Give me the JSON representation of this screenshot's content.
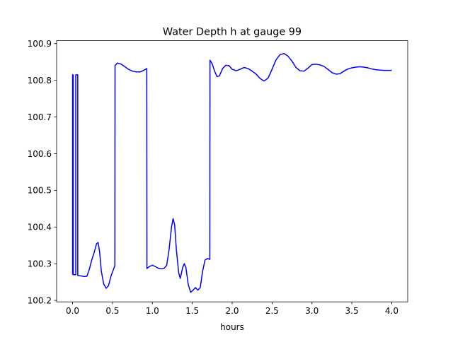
{
  "chart_data": {
    "type": "line",
    "title": "Water Depth h at gauge 99",
    "xlabel": "hours",
    "ylabel": "",
    "xlim": [
      -0.2,
      4.2
    ],
    "ylim": [
      100.196,
      100.908
    ],
    "xticks": [
      0.0,
      0.5,
      1.0,
      1.5,
      2.0,
      2.5,
      3.0,
      3.5,
      4.0
    ],
    "xtick_labels": [
      "0.0",
      "0.5",
      "1.0",
      "1.5",
      "2.0",
      "2.5",
      "3.0",
      "3.5",
      "4.0"
    ],
    "yticks": [
      100.2,
      100.3,
      100.4,
      100.5,
      100.6,
      100.7,
      100.8,
      100.9
    ],
    "ytick_labels": [
      "100.2",
      "100.3",
      "100.4",
      "100.5",
      "100.6",
      "100.7",
      "100.8",
      "100.9"
    ],
    "grid": false,
    "series": [
      {
        "color": "#0000ff",
        "points": [
          [
            0.0,
            100.27
          ],
          [
            0.0,
            100.815
          ],
          [
            0.008,
            100.815
          ],
          [
            0.008,
            100.27
          ],
          [
            0.04,
            100.27
          ],
          [
            0.04,
            100.815
          ],
          [
            0.065,
            100.815
          ],
          [
            0.065,
            100.268
          ],
          [
            0.1,
            100.267
          ],
          [
            0.15,
            100.265
          ],
          [
            0.18,
            100.266
          ],
          [
            0.21,
            100.285
          ],
          [
            0.24,
            100.31
          ],
          [
            0.27,
            100.33
          ],
          [
            0.3,
            100.354
          ],
          [
            0.32,
            100.358
          ],
          [
            0.34,
            100.33
          ],
          [
            0.36,
            100.28
          ],
          [
            0.39,
            100.245
          ],
          [
            0.42,
            100.233
          ],
          [
            0.45,
            100.24
          ],
          [
            0.48,
            100.265
          ],
          [
            0.53,
            100.295
          ],
          [
            0.532,
            100.84
          ],
          [
            0.56,
            100.847
          ],
          [
            0.6,
            100.845
          ],
          [
            0.65,
            100.838
          ],
          [
            0.7,
            100.83
          ],
          [
            0.75,
            100.825
          ],
          [
            0.8,
            100.823
          ],
          [
            0.85,
            100.823
          ],
          [
            0.88,
            100.826
          ],
          [
            0.93,
            100.832
          ],
          [
            0.932,
            100.287
          ],
          [
            0.96,
            100.292
          ],
          [
            1.0,
            100.296
          ],
          [
            1.04,
            100.292
          ],
          [
            1.08,
            100.287
          ],
          [
            1.12,
            100.286
          ],
          [
            1.15,
            100.288
          ],
          [
            1.18,
            100.296
          ],
          [
            1.21,
            100.34
          ],
          [
            1.24,
            100.4
          ],
          [
            1.26,
            100.423
          ],
          [
            1.28,
            100.405
          ],
          [
            1.3,
            100.34
          ],
          [
            1.33,
            100.275
          ],
          [
            1.35,
            100.26
          ],
          [
            1.38,
            100.29
          ],
          [
            1.4,
            100.3
          ],
          [
            1.42,
            100.29
          ],
          [
            1.45,
            100.243
          ],
          [
            1.48,
            100.222
          ],
          [
            1.51,
            100.228
          ],
          [
            1.54,
            100.235
          ],
          [
            1.57,
            100.228
          ],
          [
            1.6,
            100.235
          ],
          [
            1.63,
            100.28
          ],
          [
            1.66,
            100.31
          ],
          [
            1.69,
            100.314
          ],
          [
            1.72,
            100.312
          ],
          [
            1.722,
            100.855
          ],
          [
            1.75,
            100.845
          ],
          [
            1.78,
            100.825
          ],
          [
            1.81,
            100.81
          ],
          [
            1.84,
            100.812
          ],
          [
            1.88,
            100.832
          ],
          [
            1.92,
            100.841
          ],
          [
            1.96,
            100.84
          ],
          [
            2.0,
            100.83
          ],
          [
            2.05,
            100.826
          ],
          [
            2.1,
            100.83
          ],
          [
            2.15,
            100.835
          ],
          [
            2.2,
            100.832
          ],
          [
            2.25,
            100.825
          ],
          [
            2.3,
            100.817
          ],
          [
            2.35,
            100.805
          ],
          [
            2.4,
            100.798
          ],
          [
            2.45,
            100.806
          ],
          [
            2.5,
            100.83
          ],
          [
            2.55,
            100.856
          ],
          [
            2.6,
            100.87
          ],
          [
            2.65,
            100.873
          ],
          [
            2.7,
            100.866
          ],
          [
            2.75,
            100.852
          ],
          [
            2.8,
            100.835
          ],
          [
            2.85,
            100.826
          ],
          [
            2.9,
            100.825
          ],
          [
            2.95,
            100.833
          ],
          [
            3.0,
            100.843
          ],
          [
            3.05,
            100.844
          ],
          [
            3.1,
            100.842
          ],
          [
            3.15,
            100.838
          ],
          [
            3.2,
            100.83
          ],
          [
            3.25,
            100.821
          ],
          [
            3.3,
            100.817
          ],
          [
            3.35,
            100.818
          ],
          [
            3.4,
            100.825
          ],
          [
            3.45,
            100.831
          ],
          [
            3.5,
            100.834
          ],
          [
            3.55,
            100.836
          ],
          [
            3.6,
            100.837
          ],
          [
            3.65,
            100.836
          ],
          [
            3.7,
            100.834
          ],
          [
            3.75,
            100.831
          ],
          [
            3.8,
            100.829
          ],
          [
            3.85,
            100.828
          ],
          [
            3.9,
            100.827
          ],
          [
            3.95,
            100.827
          ],
          [
            4.0,
            100.827
          ]
        ]
      }
    ]
  }
}
